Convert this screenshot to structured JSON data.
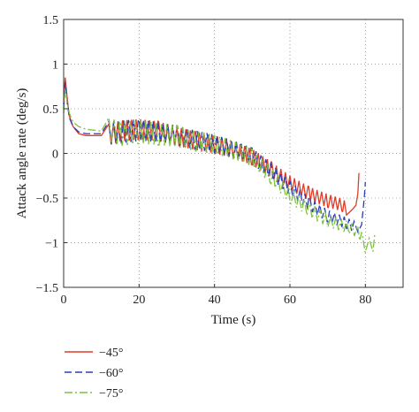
{
  "chart_data": {
    "type": "line",
    "xlabel": "Time (s)",
    "ylabel": "Attack angle rate (deg/s)",
    "xlim": [
      0,
      90
    ],
    "ylim": [
      -1.5,
      1.5
    ],
    "xticks": [
      0,
      20,
      40,
      60,
      80
    ],
    "yticks": [
      -1.5,
      -1,
      -0.5,
      0,
      0.5,
      1,
      1.5
    ],
    "xtick_labels": [
      "0",
      "20",
      "40",
      "60",
      "80"
    ],
    "ytick_labels": [
      "−1.5",
      "−1",
      "−0.5",
      "0",
      "0.5",
      "1",
      "1.5"
    ],
    "grid": "dotted",
    "legend_position": "bottom-left, below plot",
    "series": [
      {
        "name": "−45°",
        "color": "#e03c28",
        "dash": "solid",
        "oscillation": {
          "start": 12,
          "end": 75,
          "period": 1.2,
          "amp_start": 0.12,
          "amp_end": 0.07
        },
        "points": [
          [
            0,
            0.55
          ],
          [
            0.4,
            0.85
          ],
          [
            1.0,
            0.6
          ],
          [
            1.5,
            0.42
          ],
          [
            2.5,
            0.3
          ],
          [
            4,
            0.22
          ],
          [
            6,
            0.2
          ],
          [
            10,
            0.2
          ],
          [
            12,
            0.21
          ],
          [
            15,
            0.25
          ],
          [
            20,
            0.27
          ],
          [
            25,
            0.25
          ],
          [
            30,
            0.19
          ],
          [
            35,
            0.14
          ],
          [
            40,
            0.1
          ],
          [
            45,
            0.04
          ],
          [
            50,
            -0.04
          ],
          [
            55,
            -0.18
          ],
          [
            60,
            -0.33
          ],
          [
            65,
            -0.45
          ],
          [
            70,
            -0.53
          ],
          [
            74,
            -0.58
          ],
          [
            75,
            -0.62
          ],
          [
            76.5,
            -0.63
          ],
          [
            77.5,
            -0.58
          ],
          [
            78,
            -0.45
          ],
          [
            78.3,
            -0.22
          ]
        ]
      },
      {
        "name": "−60°",
        "color": "#2b3fb5",
        "dash": "8,4",
        "oscillation": {
          "start": 12,
          "end": 77,
          "period": 1.3,
          "amp_start": 0.13,
          "amp_end": 0.06
        },
        "points": [
          [
            0,
            0.5
          ],
          [
            0.4,
            0.8
          ],
          [
            1.0,
            0.55
          ],
          [
            1.5,
            0.4
          ],
          [
            2.5,
            0.3
          ],
          [
            4,
            0.24
          ],
          [
            6,
            0.22
          ],
          [
            10,
            0.22
          ],
          [
            12,
            0.23
          ],
          [
            15,
            0.24
          ],
          [
            20,
            0.26
          ],
          [
            25,
            0.24
          ],
          [
            30,
            0.2
          ],
          [
            35,
            0.15
          ],
          [
            40,
            0.11
          ],
          [
            45,
            0.05
          ],
          [
            50,
            -0.03
          ],
          [
            55,
            -0.2
          ],
          [
            60,
            -0.39
          ],
          [
            65,
            -0.56
          ],
          [
            70,
            -0.7
          ],
          [
            75,
            -0.78
          ],
          [
            77,
            -0.82
          ],
          [
            78,
            -0.88
          ],
          [
            79,
            -0.8
          ],
          [
            79.7,
            -0.5
          ],
          [
            80,
            -0.32
          ]
        ]
      },
      {
        "name": "−75°",
        "color": "#7cc23d",
        "dash": "9,3,2,3",
        "oscillation": {
          "start": 12,
          "end": 80,
          "period": 1.4,
          "amp_start": 0.14,
          "amp_end": 0.06
        },
        "points": [
          [
            0,
            0.45
          ],
          [
            0.4,
            0.72
          ],
          [
            1.0,
            0.55
          ],
          [
            1.5,
            0.45
          ],
          [
            2.5,
            0.35
          ],
          [
            4,
            0.3
          ],
          [
            6,
            0.27
          ],
          [
            10,
            0.25
          ],
          [
            12,
            0.26
          ],
          [
            15,
            0.22
          ],
          [
            20,
            0.24
          ],
          [
            25,
            0.22
          ],
          [
            30,
            0.19
          ],
          [
            35,
            0.14
          ],
          [
            40,
            0.1
          ],
          [
            45,
            0.04
          ],
          [
            50,
            -0.05
          ],
          [
            55,
            -0.25
          ],
          [
            60,
            -0.47
          ],
          [
            65,
            -0.63
          ],
          [
            70,
            -0.75
          ],
          [
            75,
            -0.82
          ],
          [
            78,
            -0.88
          ],
          [
            79,
            -0.95
          ],
          [
            80,
            -1.05
          ],
          [
            81,
            -0.95
          ],
          [
            82,
            -1.1
          ],
          [
            82.5,
            -0.9
          ]
        ]
      }
    ]
  }
}
